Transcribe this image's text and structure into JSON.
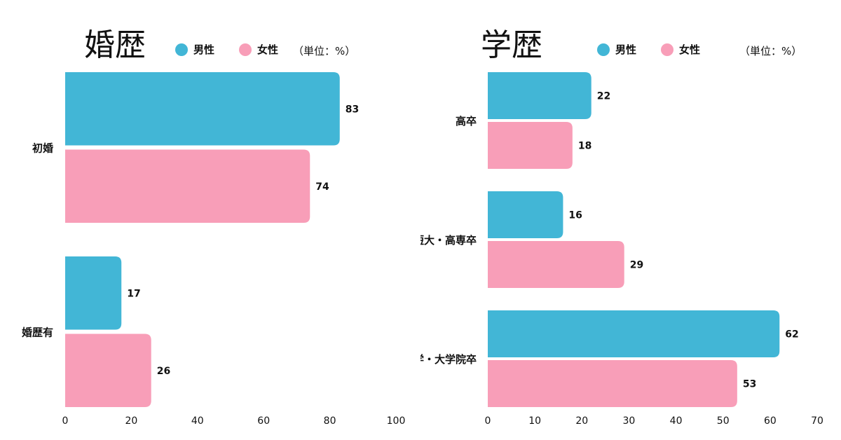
{
  "colors": {
    "male": "#42b6d6",
    "female": "#f89eb8"
  },
  "legend": {
    "male": "男性",
    "female": "女性"
  },
  "unit": "（単位：%）",
  "chart_data": [
    {
      "type": "bar",
      "orientation": "horizontal",
      "title": "婚歴",
      "categories": [
        "初婚",
        "婚歴有"
      ],
      "series": [
        {
          "name": "男性",
          "values": [
            83,
            17
          ]
        },
        {
          "name": "女性",
          "values": [
            74,
            26
          ]
        }
      ],
      "xlim": [
        0,
        100
      ],
      "xticks": [
        0,
        20,
        40,
        60,
        80,
        100
      ],
      "legend_position": "top",
      "grid": false
    },
    {
      "type": "bar",
      "orientation": "horizontal",
      "title": "学歴",
      "categories": [
        "高卒",
        "専門・短大・高専卒",
        "大学・大学院卒"
      ],
      "series": [
        {
          "name": "男性",
          "values": [
            22,
            16,
            62
          ]
        },
        {
          "name": "女性",
          "values": [
            18,
            29,
            53
          ]
        }
      ],
      "xlim": [
        0,
        70
      ],
      "xticks": [
        0,
        10,
        20,
        30,
        40,
        50,
        60,
        70
      ],
      "legend_position": "top",
      "grid": false
    }
  ]
}
